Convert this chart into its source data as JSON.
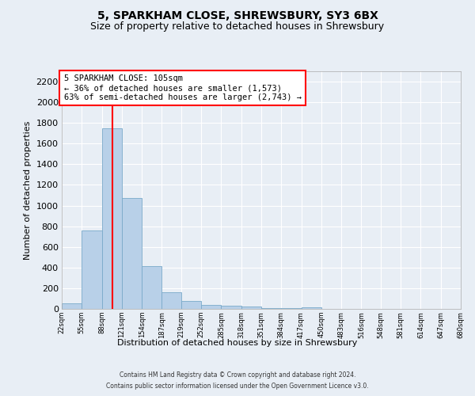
{
  "title1": "5, SPARKHAM CLOSE, SHREWSBURY, SY3 6BX",
  "title2": "Size of property relative to detached houses in Shrewsbury",
  "xlabel": "Distribution of detached houses by size in Shrewsbury",
  "ylabel": "Number of detached properties",
  "bar_color": "#b8d0e8",
  "bar_edge_color": "#7aaaca",
  "vline_color": "red",
  "property_size": 105,
  "annotation_text": "5 SPARKHAM CLOSE: 105sqm\n← 36% of detached houses are smaller (1,573)\n63% of semi-detached houses are larger (2,743) →",
  "footer1": "Contains HM Land Registry data © Crown copyright and database right 2024.",
  "footer2": "Contains public sector information licensed under the Open Government Licence v3.0.",
  "bin_edges": [
    22,
    55,
    88,
    121,
    154,
    187,
    219,
    252,
    285,
    318,
    351,
    384,
    417,
    450,
    483,
    516,
    548,
    581,
    614,
    647,
    680
  ],
  "bar_heights": [
    55,
    760,
    1745,
    1075,
    415,
    160,
    80,
    35,
    30,
    20,
    10,
    5,
    15,
    0,
    0,
    0,
    0,
    0,
    0,
    0
  ],
  "ylim": [
    0,
    2300
  ],
  "yticks": [
    0,
    200,
    400,
    600,
    800,
    1000,
    1200,
    1400,
    1600,
    1800,
    2000,
    2200
  ],
  "background_color": "#e8eef5",
  "plot_bg_color": "#e8eef5",
  "grid_color": "white",
  "title_fontsize": 10,
  "subtitle_fontsize": 9,
  "ylabel_fontsize": 8,
  "xlabel_fontsize": 8,
  "ytick_fontsize": 8,
  "xtick_fontsize": 6
}
